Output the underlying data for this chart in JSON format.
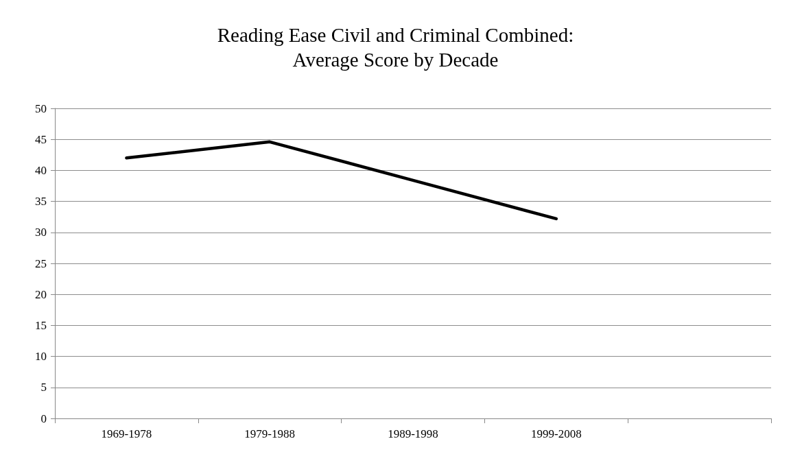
{
  "chart_data": {
    "type": "line",
    "title": "Reading Ease Civil and Criminal Combined:\nAverage Score by Decade",
    "categories": [
      "1969-1978",
      "1979-1988",
      "1989-1998",
      "1999-2008",
      null
    ],
    "series": [
      {
        "color": "#000000",
        "values": [
          42,
          44.6,
          38.4,
          32.2,
          null
        ]
      }
    ],
    "ylim": [
      0,
      50
    ],
    "yticks": [
      0,
      5,
      10,
      15,
      20,
      25,
      30,
      35,
      40,
      45,
      50
    ],
    "grid": "y",
    "marker": "none",
    "line_style": "solid"
  }
}
